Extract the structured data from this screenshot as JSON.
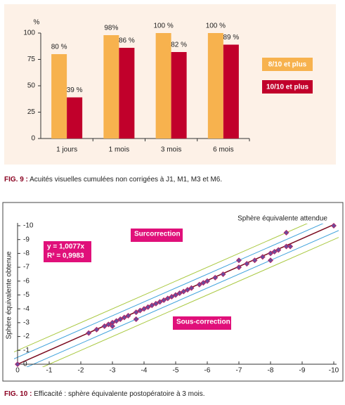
{
  "chart_data": [
    {
      "type": "bar",
      "y_label": "%",
      "categories": [
        "1 jours",
        "1 mois",
        "3 mois",
        "6 mois"
      ],
      "series": [
        {
          "name": "8/10 et plus",
          "color": "#f7b24e",
          "values": [
            80,
            98,
            100,
            100
          ],
          "value_labels": [
            "80 %",
            "98%",
            "100 %",
            "100 %"
          ]
        },
        {
          "name": "10/10 et plus",
          "color": "#c1002b",
          "values": [
            39,
            86,
            82,
            89
          ],
          "value_labels": [
            "39 %",
            "86 %",
            "82 %",
            "89 %"
          ]
        }
      ],
      "ylim": [
        0,
        100
      ],
      "yticks": [
        0,
        25,
        50,
        75,
        100
      ],
      "caption_label": "FIG. 9 :",
      "caption": "Acuités visuelles cumulées non corrigées à J1, M1, M3 et M6."
    },
    {
      "type": "scatter",
      "x_label": "Sphère équivalente attendue",
      "y_label": "Sphère équivalente obtenue",
      "color": "#6b4c9a",
      "x": [
        0,
        -2.25,
        -2.5,
        -2.75,
        -2.875,
        -3,
        -3,
        -3.125,
        -3.25,
        -3.375,
        -3.5,
        -3.75,
        -3.75,
        -3.875,
        -4,
        -4.125,
        -4.25,
        -4.375,
        -4.5,
        -4.625,
        -4.75,
        -4.875,
        -5,
        -5.125,
        -5.25,
        -5.375,
        -5.5,
        -5.75,
        -5.875,
        -6,
        -6.25,
        -6.5,
        -7,
        -7,
        -7.25,
        -7.5,
        -7.75,
        -8,
        -8,
        -8.125,
        -8.25,
        -8.5,
        -8.5,
        -8.625,
        -10
      ],
      "y": [
        0,
        -2.25,
        -2.5,
        -2.75,
        -2.875,
        -3,
        -2.75,
        -3.125,
        -3.25,
        -3.375,
        -3.5,
        -3.75,
        -3.25,
        -3.875,
        -4,
        -4.125,
        -4.25,
        -4.375,
        -4.5,
        -4.625,
        -4.75,
        -4.875,
        -5,
        -5.125,
        -5.25,
        -5.375,
        -5.5,
        -5.75,
        -5.875,
        -6,
        -6.25,
        -6.5,
        -7.5,
        -7,
        -7.25,
        -7.5,
        -7.75,
        -8,
        -7.5,
        -8.125,
        -8.25,
        -8.5,
        -9.5,
        -8.5,
        -10
      ],
      "xlim": [
        0,
        -10
      ],
      "ylim": [
        0,
        -10
      ],
      "xticks": [
        0,
        -1,
        -2,
        -3,
        -4,
        -5,
        -6,
        -7,
        -8,
        -9,
        -10
      ],
      "yticks": [
        0,
        -1,
        -2,
        -3,
        -4,
        -5,
        -6,
        -7,
        -8,
        -9,
        -10
      ],
      "regression_slope": 1.0077,
      "regression_color": "#7a0a1e",
      "bands": [
        {
          "offset": 0.5,
          "color": "#3fa2dc"
        },
        {
          "offset": 1,
          "color": "#a9c83f"
        }
      ],
      "equation": "y = 1,0077x",
      "r_squared": "R² = 0,9983",
      "over_label": "Surcorrection",
      "under_label": "Sous-correction",
      "caption_label": "FIG. 10 :",
      "caption": "Efficacité : sphère équivalente postopératoire à 3 mois."
    }
  ]
}
